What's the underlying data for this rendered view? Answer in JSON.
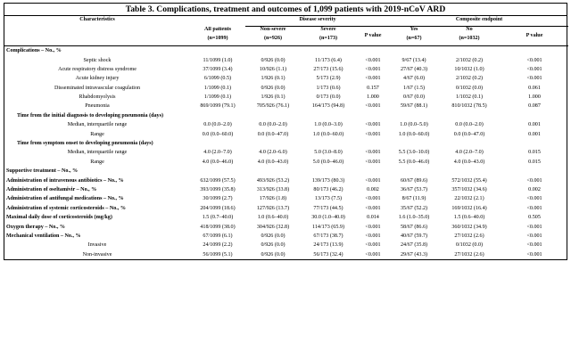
{
  "title": "Table 3. Complications, treatment and outcomes of 1,099 patients with 2019-nCoV ARD",
  "header": {
    "characteristics": "Characteristics",
    "all_patients": "All patients",
    "all_n": "(n=1099)",
    "disease_severity": "Disease severity",
    "non_severe": "Non-severe",
    "non_severe_n": "(n=926)",
    "severe": "Severe",
    "severe_n": "(n=173)",
    "p_value": "P value",
    "composite": "Composite endpoint",
    "yes": "Yes",
    "yes_n": "(n=67)",
    "no": "No",
    "no_n": "(n=1032)",
    "p_value2": "P value"
  },
  "rows": [
    {
      "type": "section",
      "label": "Complications – No., %"
    },
    {
      "type": "item",
      "label": "Septic shock",
      "vals": [
        "11/1099 (1.0)",
        "0/926 (0.0)",
        "11/173 (6.4)",
        "<0.001",
        "9/67 (13.4)",
        "2/1032 (0.2)",
        "<0.001"
      ]
    },
    {
      "type": "item",
      "label": "Acute respiratory distress syndrome",
      "vals": [
        "37/1099 (3.4)",
        "10/926 (1.1)",
        "27/173 (15.6)",
        "<0.001",
        "27/67 (40.3)",
        "10/1032 (1.0)",
        "<0.001"
      ]
    },
    {
      "type": "item",
      "label": "Acute kidney injury",
      "vals": [
        "6/1099 (0.5)",
        "1/926 (0.1)",
        "5/173 (2.9)",
        "<0.001",
        "4/67 (6.0)",
        "2/1032 (0.2)",
        "<0.001"
      ]
    },
    {
      "type": "item",
      "label": "Disseminated intravascular coagulation",
      "vals": [
        "1/1099 (0.1)",
        "0/926 (0.0)",
        "1/173 (0.6)",
        "0.157",
        "1/67 (1.5)",
        "0/1032 (0.0)",
        "0.061"
      ]
    },
    {
      "type": "item",
      "label": "Rhabdomyolysis",
      "vals": [
        "1/1099 (0.1)",
        "1/926 (0.1)",
        "0/173 (0.0)",
        "1.000",
        "0/67 (0.0)",
        "1/1032 (0.1)",
        "1.000"
      ]
    },
    {
      "type": "item",
      "label": "Pneumonia",
      "vals": [
        "869/1099 (79.1)",
        "705/926 (76.1)",
        "164/173 (94.8)",
        "<0.001",
        "59/67 (88.1)",
        "810/1032 (78.5)",
        "0.087"
      ]
    },
    {
      "type": "section",
      "label": "Time from the initial diagnosis to developing pneumonia (days)"
    },
    {
      "type": "item",
      "label": "Median, interquartile range",
      "vals": [
        "0.0 (0.0–2.0)",
        "0.0 (0.0–2.0)",
        "1.0 (0.0–3.0)",
        "<0.001",
        "1.0 (0.0–5.0)",
        "0.0 (0.0–2.0)",
        "0.001"
      ]
    },
    {
      "type": "item",
      "label": "Range",
      "vals": [
        "0.0 (0.0–60.0)",
        "0.0 (0.0–47.0)",
        "1.0 (0.0–60.0)",
        "<0.001",
        "1.0 (0.0–60.0)",
        "0.0 (0.0–47.0)",
        "0.001"
      ]
    },
    {
      "type": "section",
      "label": "Time from symptom onset to developing pneumonia (days)"
    },
    {
      "type": "item",
      "label": "Median, interquartile range",
      "vals": [
        "4.0 (2.0–7.0)",
        "4.0 (2.0–6.0)",
        "5.0 (3.0–8.0)",
        "<0.001",
        "5.5 (3.0–10.0)",
        "4.0 (2.0–7.0)",
        "0.015"
      ]
    },
    {
      "type": "item",
      "label": "Range",
      "vals": [
        "4.0 (0.0–46.0)",
        "4.0 (0.0–43.0)",
        "5.0 (0.0–46.0)",
        "<0.001",
        "5.5 (0.0–46.0)",
        "4.0 (0.0–43.0)",
        "0.015"
      ]
    },
    {
      "type": "section",
      "label": "Supportive treatment – No., %"
    },
    {
      "type": "bold",
      "label": "Administration of intravenous antibiotics – No., %",
      "vals": [
        "632/1099 (57.5)",
        "493/926 (53.2)",
        "139/173 (80.3)",
        "<0.001",
        "60/67 (89.6)",
        "572/1032 (55.4)",
        "<0.001"
      ]
    },
    {
      "type": "bold",
      "label": "Administration of oseltamivir – No., %",
      "vals": [
        "393/1099 (35.8)",
        "313/926 (33.8)",
        "80/173 (46.2)",
        "0.002",
        "36/67 (53.7)",
        "357/1032 (34.6)",
        "0.002"
      ]
    },
    {
      "type": "bold",
      "label": "Administration of antifungal medications – No., %",
      "vals": [
        "30/1099 (2.7)",
        "17/926 (1.8)",
        "13/173 (7.5)",
        "<0.001",
        "8/67 (11.9)",
        "22/1032 (2.1)",
        "<0.001"
      ]
    },
    {
      "type": "bold",
      "label": "Administration of systemic corticosteroids – No., %",
      "vals": [
        "204/1099 (18.6)",
        "127/926 (13.7)",
        "77/173 (44.5)",
        "<0.001",
        "35/67 (52.2)",
        "169/1032 (16.4)",
        "<0.001"
      ]
    },
    {
      "type": "bold",
      "label": "Maximal daily dose of corticosteroids (mg/kg)",
      "vals": [
        "1.5 (0.7–40.0)",
        "1.0 (0.6–40.0)",
        "30.0 (1.0–40.0)",
        "0.014",
        "1.6 (1.0–35.0)",
        "1.5 (0.6–40.0)",
        "0.505"
      ]
    },
    {
      "type": "bold",
      "label": "Oxygen therapy – No., %",
      "vals": [
        "418/1099 (38.0)",
        "304/926 (32.8)",
        "114/173 (65.9)",
        "<0.001",
        "58/67 (86.6)",
        "360/1032 (34.9)",
        "<0.001"
      ]
    },
    {
      "type": "bold",
      "label": "Mechanical ventilation – No., %",
      "vals": [
        "67/1099 (6.1)",
        "0/926 (0.0)",
        "67/173 (38.7)",
        "<0.001",
        "40/67 (59.7)",
        "27/1032 (2.6)",
        "<0.001"
      ]
    },
    {
      "type": "item",
      "label": "Invasive",
      "vals": [
        "24/1099 (2.2)",
        "0/926 (0.0)",
        "24/173 (13.9)",
        "<0.001",
        "24/67 (35.8)",
        "0/1032 (0.0)",
        "<0.001"
      ]
    },
    {
      "type": "item",
      "label": "Non-invasive",
      "vals": [
        "56/1099 (5.1)",
        "0/926 (0.0)",
        "56/173 (32.4)",
        "<0.001",
        "29/67 (43.3)",
        "27/1032 (2.6)",
        "<0.001"
      ]
    }
  ]
}
